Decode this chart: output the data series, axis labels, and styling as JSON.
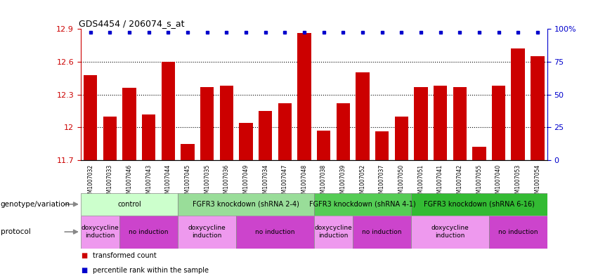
{
  "title": "GDS4454 / 206074_s_at",
  "samples": [
    "GSM1007032",
    "GSM1007033",
    "GSM1007046",
    "GSM1007043",
    "GSM1007044",
    "GSM1007045",
    "GSM1007035",
    "GSM1007036",
    "GSM1007049",
    "GSM1007034",
    "GSM1007047",
    "GSM1007048",
    "GSM1007038",
    "GSM1007039",
    "GSM1007052",
    "GSM1007037",
    "GSM1007050",
    "GSM1007051",
    "GSM1007041",
    "GSM1007042",
    "GSM1007055",
    "GSM1007040",
    "GSM1007053",
    "GSM1007054"
  ],
  "bar_values": [
    12.48,
    12.1,
    12.36,
    12.12,
    12.6,
    11.85,
    12.37,
    12.38,
    12.04,
    12.15,
    12.22,
    12.86,
    11.97,
    12.22,
    12.5,
    11.96,
    12.1,
    12.37,
    12.38,
    12.37,
    11.82,
    12.38,
    12.72,
    12.65
  ],
  "percentile_values": [
    100,
    100,
    100,
    100,
    100,
    100,
    100,
    100,
    100,
    100,
    100,
    100,
    100,
    100,
    100,
    100,
    100,
    100,
    100,
    100,
    100,
    100,
    100,
    100
  ],
  "bar_color": "#cc0000",
  "percentile_color": "#0000cc",
  "ymin": 11.7,
  "ymax": 12.9,
  "yticks": [
    11.7,
    12.0,
    12.3,
    12.6,
    12.9
  ],
  "ytick_labels": [
    "11.7",
    "12",
    "12.3",
    "12.6",
    "12.9"
  ],
  "right_yticks": [
    0,
    25,
    50,
    75,
    100
  ],
  "right_ytick_labels": [
    "0",
    "25",
    "50",
    "75",
    "100%"
  ],
  "genotype_groups": [
    {
      "label": "control",
      "start": 0,
      "end": 4,
      "color": "#ccffcc"
    },
    {
      "label": "FGFR3 knockdown (shRNA 2-4)",
      "start": 5,
      "end": 11,
      "color": "#99dd99"
    },
    {
      "label": "FGFR3 knockdown (shRNA 4-1)",
      "start": 12,
      "end": 16,
      "color": "#55cc55"
    },
    {
      "label": "FGFR3 knockdown (shRNA 6-16)",
      "start": 17,
      "end": 23,
      "color": "#33bb33"
    }
  ],
  "protocol_groups": [
    {
      "label": "doxycycline\ninduction",
      "start": 0,
      "end": 1,
      "color": "#ee99ee"
    },
    {
      "label": "no induction",
      "start": 2,
      "end": 4,
      "color": "#cc44cc"
    },
    {
      "label": "doxycycline\ninduction",
      "start": 5,
      "end": 7,
      "color": "#ee99ee"
    },
    {
      "label": "no induction",
      "start": 8,
      "end": 11,
      "color": "#cc44cc"
    },
    {
      "label": "doxycycline\ninduction",
      "start": 12,
      "end": 13,
      "color": "#ee99ee"
    },
    {
      "label": "no induction",
      "start": 14,
      "end": 16,
      "color": "#cc44cc"
    },
    {
      "label": "doxycycline\ninduction",
      "start": 17,
      "end": 20,
      "color": "#ee99ee"
    },
    {
      "label": "no induction",
      "start": 21,
      "end": 23,
      "color": "#cc44cc"
    }
  ],
  "legend_items": [
    {
      "label": "transformed count",
      "color": "#cc0000"
    },
    {
      "label": "percentile rank within the sample",
      "color": "#0000cc"
    }
  ],
  "bg_color": "#ffffff"
}
